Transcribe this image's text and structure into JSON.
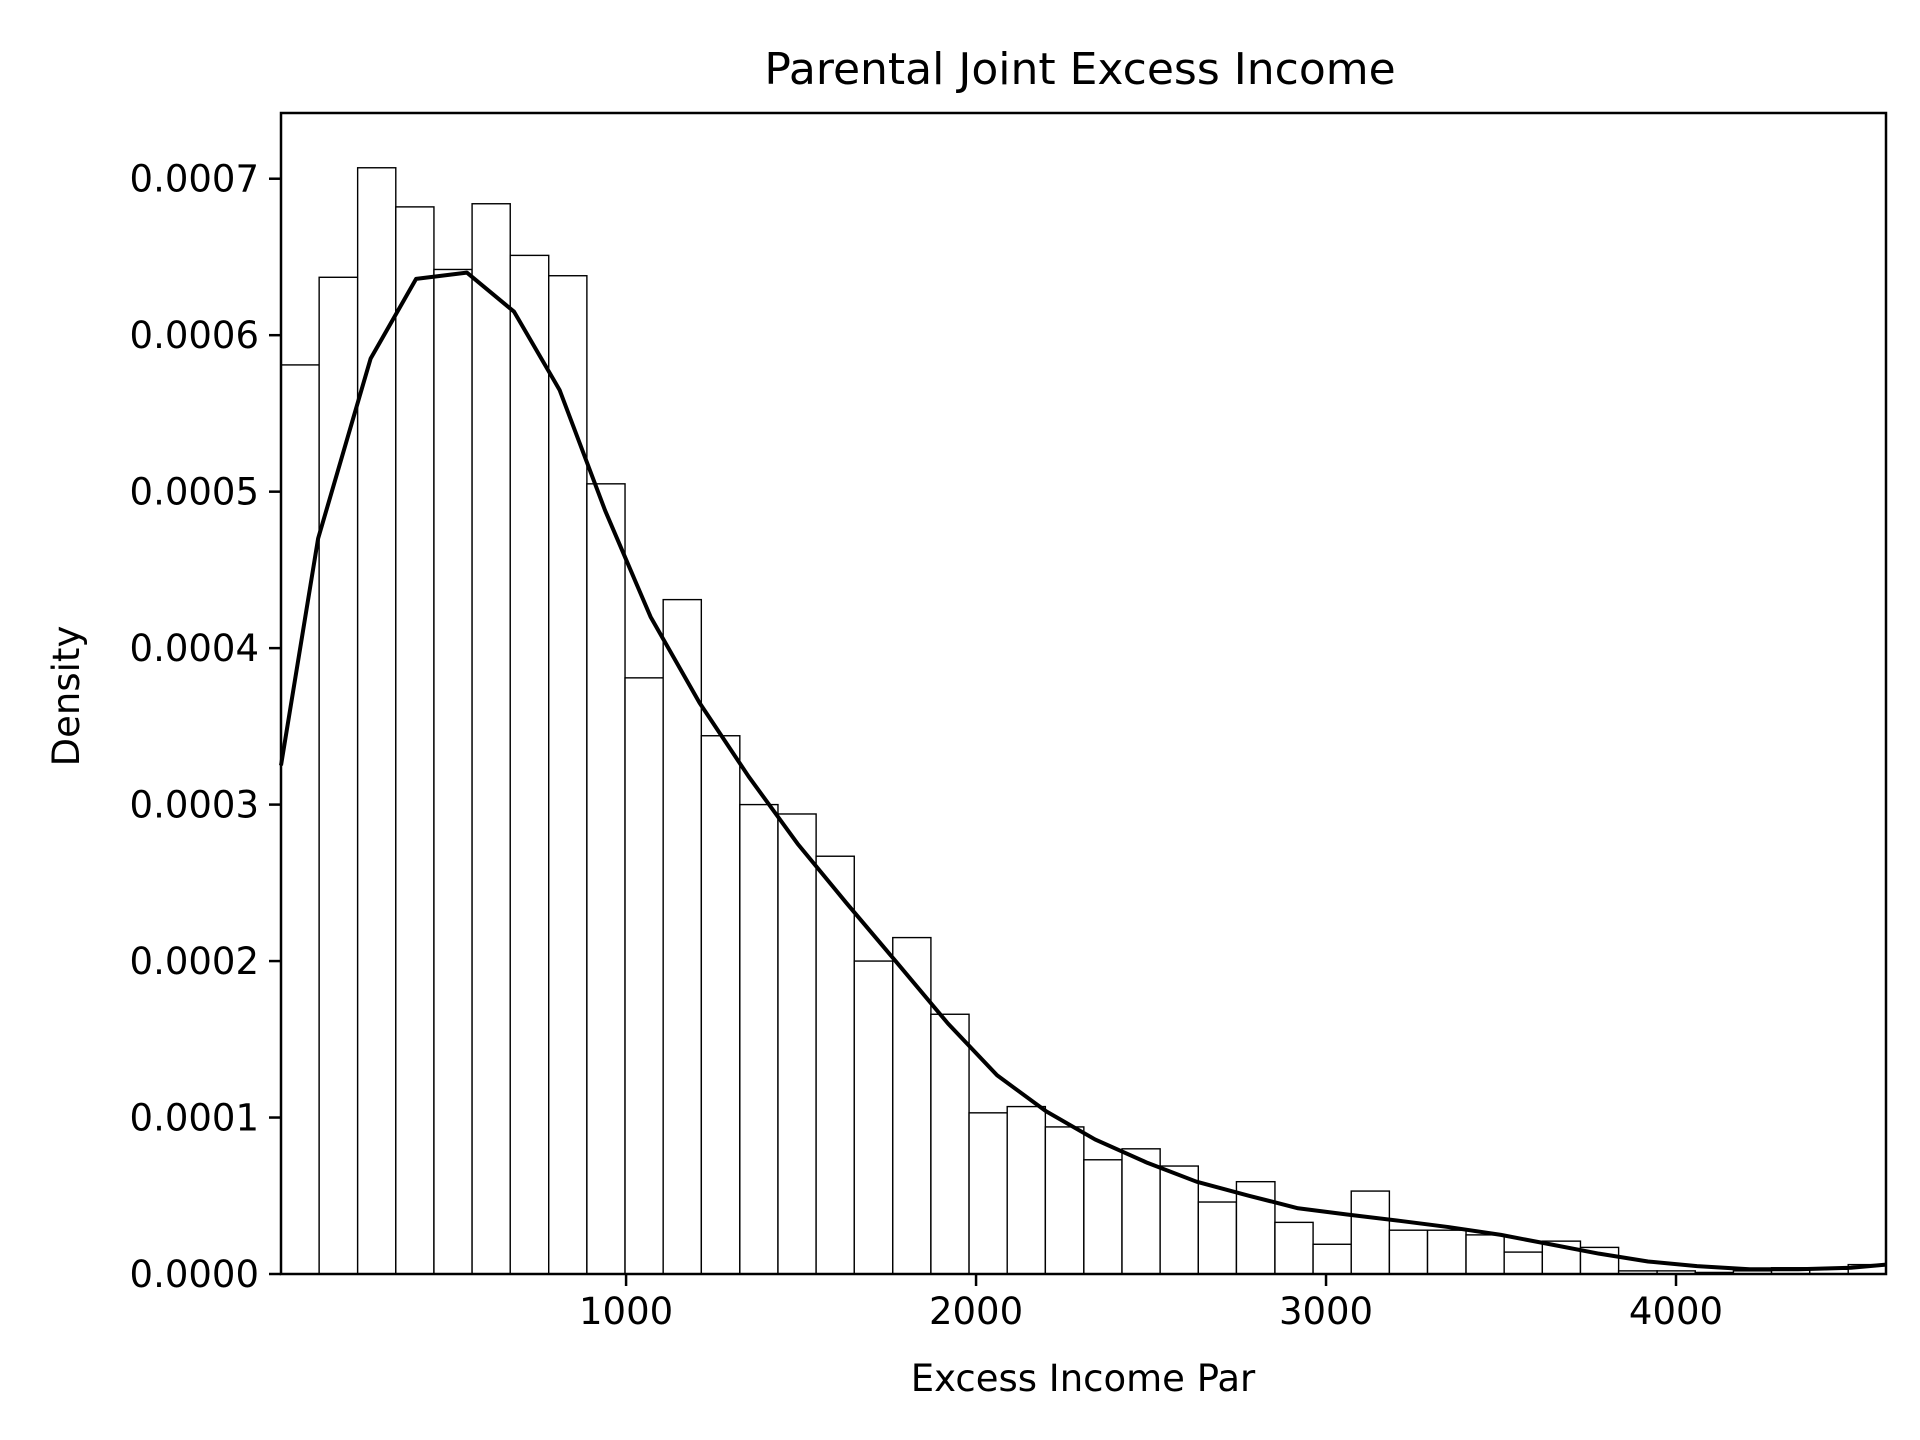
{
  "chart_data": {
    "type": "bar",
    "title": "Parental Joint Excess Income",
    "xlabel": "Excess Income Par",
    "ylabel": "Density",
    "xlim": [
      14,
      4600
    ],
    "ylim": [
      0,
      0.000742
    ],
    "grid": false,
    "legend": "none",
    "bar_fill": "#ffffff",
    "bar_edge": "#000000",
    "line_color": "#000000",
    "x_ticks": [
      {
        "value": 1000,
        "label": "1000"
      },
      {
        "value": 2000,
        "label": "2000"
      },
      {
        "value": 3000,
        "label": "3000"
      },
      {
        "value": 4000,
        "label": "4000"
      }
    ],
    "y_ticks": [
      {
        "value": 0.0,
        "label": "0.0000"
      },
      {
        "value": 0.0001,
        "label": "0.0001"
      },
      {
        "value": 0.0002,
        "label": "0.0002"
      },
      {
        "value": 0.0003,
        "label": "0.0003"
      },
      {
        "value": 0.0004,
        "label": "0.0004"
      },
      {
        "value": 0.0005,
        "label": "0.0005"
      },
      {
        "value": 0.0006,
        "label": "0.0006"
      },
      {
        "value": 0.0007,
        "label": "0.0007"
      }
    ],
    "bins": {
      "edges": [
        14,
        123,
        233,
        342,
        451,
        560,
        669,
        779,
        888,
        997,
        1106,
        1215,
        1325,
        1434,
        1543,
        1652,
        1762,
        1871,
        1980,
        2089,
        2198,
        2308,
        2417,
        2526,
        2635,
        2744,
        2854,
        2963,
        3072,
        3181,
        3290,
        3400,
        3509,
        3618,
        3727,
        3836,
        3946,
        4055,
        4164,
        4273,
        4382,
        4492,
        4600
      ],
      "densities": [
        0.000581,
        0.000637,
        0.000707,
        0.000682,
        0.000642,
        0.000684,
        0.000651,
        0.000638,
        0.000505,
        0.000381,
        0.000431,
        0.000344,
        0.0003,
        0.000294,
        0.000267,
        0.0002,
        0.000215,
        0.000166,
        0.000103,
        0.000107,
        9.4e-05,
        7.3e-05,
        8e-05,
        6.9e-05,
        4.6e-05,
        5.9e-05,
        3.3e-05,
        1.9e-05,
        5.3e-05,
        2.8e-05,
        2.8e-05,
        2.5e-05,
        1.4e-05,
        2.1e-05,
        1.7e-05,
        2e-06,
        2e-06,
        1e-06,
        2e-06,
        4e-06,
        3e-06,
        6e-06
      ]
    },
    "kde": {
      "x": [
        14,
        120,
        270,
        400,
        545,
        680,
        810,
        940,
        1070,
        1210,
        1350,
        1490,
        1630,
        1770,
        1920,
        2060,
        2200,
        2340,
        2490,
        2630,
        2780,
        2920,
        3060,
        3210,
        3350,
        3500,
        3640,
        3780,
        3920,
        4060,
        4210,
        4350,
        4500,
        4600
      ],
      "y": [
        0.000325,
        0.00047,
        0.000585,
        0.000636,
        0.00064,
        0.000615,
        0.000565,
        0.000488,
        0.00042,
        0.000365,
        0.000318,
        0.000275,
        0.000237,
        0.0002,
        0.00016,
        0.000127,
        0.000104,
        8.6e-05,
        7.1e-05,
        5.9e-05,
        5e-05,
        4.2e-05,
        3.8e-05,
        3.4e-05,
        3e-05,
        2.5e-05,
        1.9e-05,
        1.3e-05,
        8e-06,
        5e-06,
        3e-06,
        3e-06,
        4e-06,
        6e-06
      ]
    }
  }
}
